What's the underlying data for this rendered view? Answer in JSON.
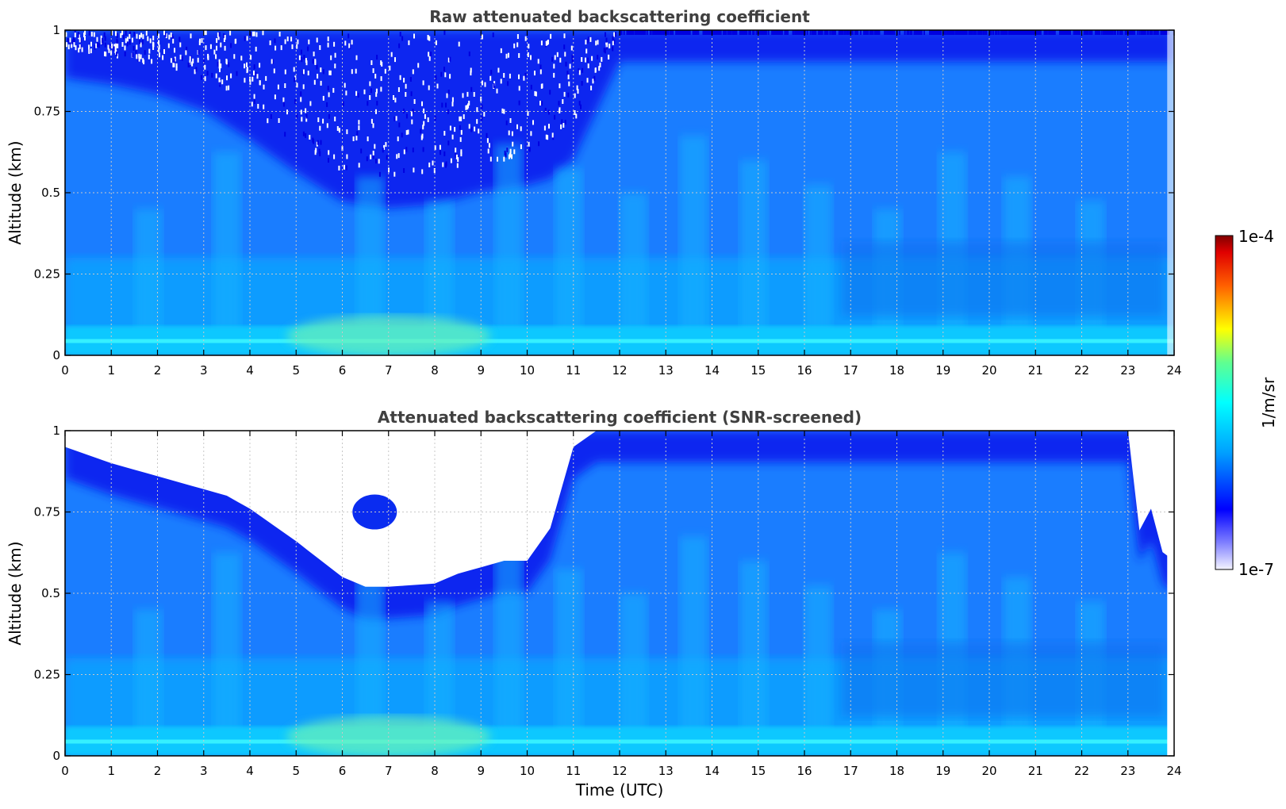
{
  "chart_data": [
    {
      "type": "heatmap",
      "title": "Raw attenuated backscattering coefficient",
      "xlabel": "",
      "ylabel": "Altitude (km)",
      "xlim": [
        0,
        24
      ],
      "ylim": [
        0,
        1
      ],
      "xticks": [
        "0",
        "1",
        "2",
        "3",
        "4",
        "5",
        "6",
        "7",
        "8",
        "9",
        "10",
        "11",
        "12",
        "13",
        "14",
        "15",
        "16",
        "17",
        "18",
        "19",
        "20",
        "21",
        "22",
        "23",
        "24"
      ],
      "yticks": [
        "0",
        "0.25",
        "0.5",
        "0.75",
        "1"
      ],
      "grid": true,
      "screened": false,
      "noise_floor_altitude_km": {
        "time_utc": [
          0,
          1,
          2,
          3,
          4,
          5,
          6,
          7,
          8,
          9,
          10,
          10.5,
          11,
          12,
          24
        ],
        "altitude": [
          0.95,
          0.93,
          0.9,
          0.85,
          0.76,
          0.66,
          0.57,
          0.55,
          0.56,
          0.6,
          0.62,
          0.64,
          0.7,
          1.0,
          1.0
        ]
      }
    },
    {
      "type": "heatmap",
      "title": "Attenuated backscattering coefficient (SNR-screened)",
      "xlabel": "Time (UTC)",
      "ylabel": "Altitude (km)",
      "xlim": [
        0,
        24
      ],
      "ylim": [
        0,
        1
      ],
      "xticks": [
        "0",
        "1",
        "2",
        "3",
        "4",
        "5",
        "6",
        "7",
        "8",
        "9",
        "10",
        "11",
        "12",
        "13",
        "14",
        "15",
        "16",
        "17",
        "18",
        "19",
        "20",
        "21",
        "22",
        "23",
        "24"
      ],
      "yticks": [
        "0",
        "0.25",
        "0.5",
        "0.75",
        "1"
      ],
      "grid": true,
      "screened": true,
      "screened_boundary_altitude_km": {
        "time_utc": [
          0,
          1,
          2,
          3,
          3.5,
          4,
          5,
          6,
          6.5,
          7,
          8,
          8.5,
          9,
          9.5,
          10,
          10.5,
          11,
          11.5,
          12,
          23,
          23.2,
          23.5,
          23.8,
          24
        ],
        "altitude": [
          0.95,
          0.9,
          0.86,
          0.82,
          0.8,
          0.76,
          0.66,
          0.55,
          0.52,
          0.52,
          0.53,
          0.56,
          0.58,
          0.6,
          0.6,
          0.7,
          0.95,
          1.0,
          1.0,
          1.0,
          0.68,
          0.76,
          0.6,
          0.6
        ]
      }
    }
  ],
  "colorbar": {
    "label": "1/m/sr",
    "min_label": "1e-7",
    "max_label": "1e-4",
    "scale": "log",
    "colors": [
      "#ffffff",
      "#0000ff",
      "#00a0ff",
      "#00ffff",
      "#ffff00",
      "#ff0000",
      "#800000"
    ]
  }
}
